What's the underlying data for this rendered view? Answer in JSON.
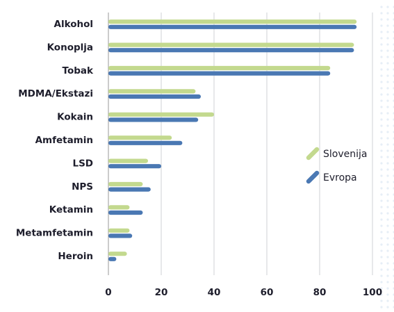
{
  "chart_data": {
    "type": "bar",
    "orientation": "horizontal",
    "categories": [
      "Alkohol",
      "Konoplja",
      "Tobak",
      "MDMA/Ekstazi",
      "Kokain",
      "Amfetamin",
      "LSD",
      "NPS",
      "Ketamin",
      "Metamfetamin",
      "Heroin"
    ],
    "series": [
      {
        "name": "Slovenija",
        "color": "#c3d98e",
        "values": [
          94,
          93,
          84,
          33,
          40,
          24,
          15,
          13,
          8,
          8,
          7
        ]
      },
      {
        "name": "Evropa",
        "color": "#4a78b3",
        "values": [
          94,
          93,
          84,
          35,
          34,
          28,
          20,
          16,
          13,
          9,
          3
        ]
      }
    ],
    "xlim": [
      0,
      100
    ],
    "xticks": [
      "0",
      "20",
      "40",
      "60",
      "80",
      "100"
    ],
    "grid": "vertical",
    "legend_position": "right",
    "title": "",
    "xlabel": "",
    "ylabel": ""
  }
}
